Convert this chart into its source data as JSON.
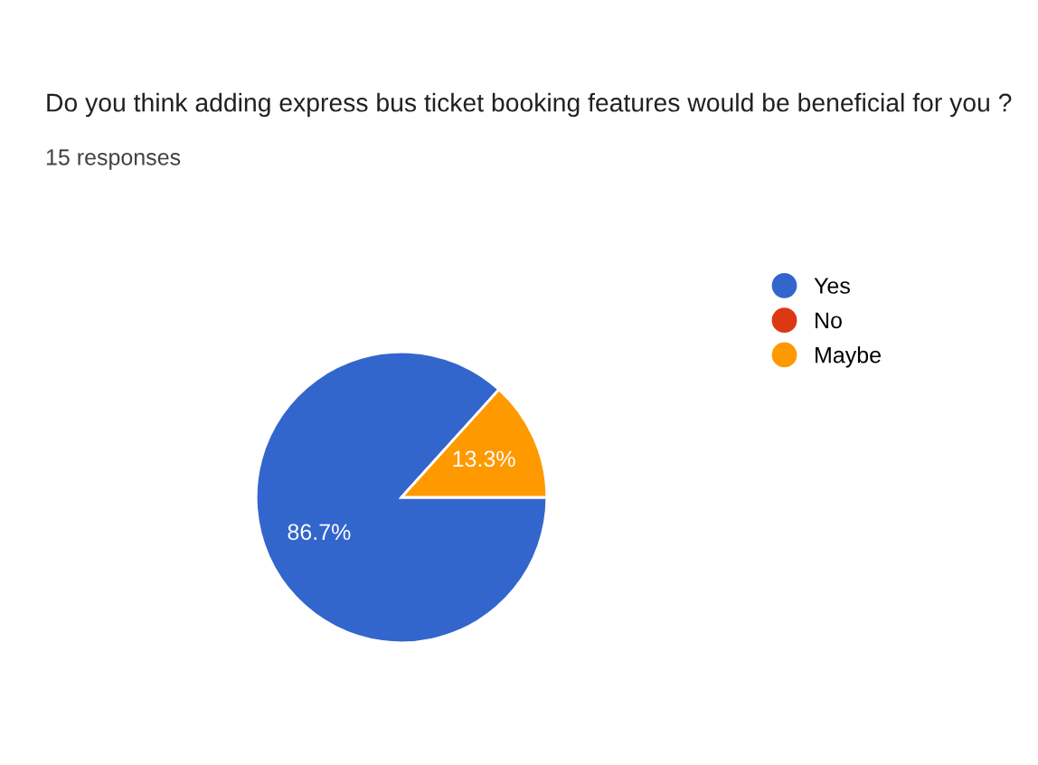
{
  "chart_data": {
    "type": "pie",
    "title": "Do you think adding express bus ticket booking features would be beneficial for you ?",
    "subtitle": "15 responses",
    "categories": [
      "Yes",
      "No",
      "Maybe"
    ],
    "values": [
      86.7,
      0,
      13.3
    ],
    "colors": [
      "#3366cc",
      "#dc3912",
      "#ff9900"
    ],
    "value_labels": [
      "86.7%",
      null,
      "13.3%"
    ],
    "legend": "right"
  }
}
